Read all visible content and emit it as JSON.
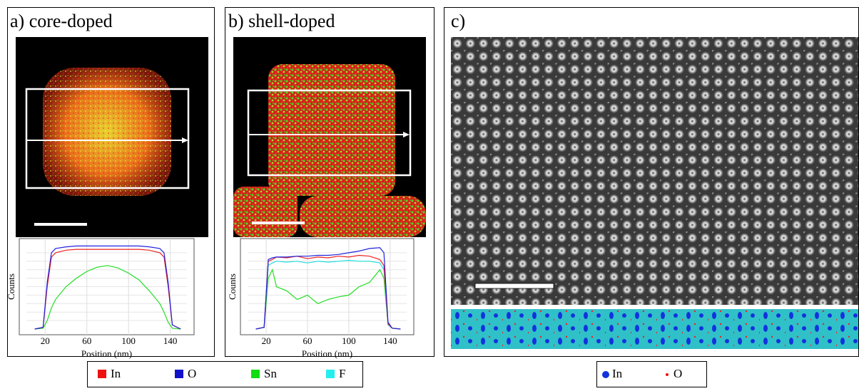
{
  "panels": [
    {
      "label": "a) core-doped",
      "plot": {
        "type": "line",
        "xlabel": "Position (nm)",
        "ylabel": "Counts",
        "xlim": [
          2,
          156
        ],
        "ylim": [
          0,
          1
        ],
        "xticks": [
          20,
          60,
          100,
          140
        ],
        "x": [
          10,
          18,
          22,
          26,
          30,
          40,
          50,
          60,
          70,
          80,
          90,
          100,
          110,
          120,
          130,
          134,
          138,
          142,
          150
        ],
        "series": [
          {
            "name": "Sn",
            "color": "#22dd22",
            "values": [
              0,
              0.01,
              0.1,
              0.25,
              0.35,
              0.5,
              0.6,
              0.68,
              0.73,
              0.75,
              0.72,
              0.66,
              0.58,
              0.45,
              0.3,
              0.2,
              0.08,
              0.01,
              0
            ]
          },
          {
            "name": "In",
            "color": "#ee2222",
            "values": [
              0,
              0.02,
              0.5,
              0.85,
              0.9,
              0.93,
              0.94,
              0.94,
              0.94,
              0.94,
              0.94,
              0.94,
              0.94,
              0.93,
              0.9,
              0.85,
              0.5,
              0.05,
              0
            ]
          },
          {
            "name": "O",
            "color": "#2222dd",
            "values": [
              0,
              0.02,
              0.55,
              0.9,
              0.95,
              0.97,
              0.98,
              0.98,
              0.98,
              0.98,
              0.98,
              0.98,
              0.98,
              0.97,
              0.95,
              0.9,
              0.55,
              0.05,
              0
            ]
          }
        ]
      }
    },
    {
      "label": "b) shell-doped",
      "plot": {
        "type": "line",
        "xlabel": "Position (nm)",
        "ylabel": "Counts",
        "xlim": [
          2,
          156
        ],
        "ylim": [
          0,
          1
        ],
        "xticks": [
          20,
          60,
          100,
          140
        ],
        "x": [
          10,
          18,
          22,
          26,
          30,
          40,
          50,
          60,
          70,
          80,
          90,
          100,
          110,
          120,
          130,
          134,
          138,
          142,
          150
        ],
        "series": [
          {
            "name": "Sn",
            "color": "#22dd22",
            "values": [
              0,
              0.02,
              0.6,
              0.7,
              0.5,
              0.45,
              0.35,
              0.4,
              0.3,
              0.35,
              0.38,
              0.4,
              0.5,
              0.55,
              0.7,
              0.6,
              0.05,
              0.01,
              0
            ]
          },
          {
            "name": "F",
            "color": "#22dddd",
            "values": [
              0,
              0.02,
              0.75,
              0.78,
              0.8,
              0.79,
              0.8,
              0.78,
              0.8,
              0.79,
              0.8,
              0.81,
              0.8,
              0.8,
              0.78,
              0.7,
              0.05,
              0.01,
              0
            ]
          },
          {
            "name": "In",
            "color": "#ee2222",
            "values": [
              0,
              0.02,
              0.8,
              0.82,
              0.85,
              0.84,
              0.86,
              0.83,
              0.85,
              0.84,
              0.86,
              0.85,
              0.87,
              0.86,
              0.82,
              0.75,
              0.06,
              0.01,
              0
            ]
          },
          {
            "name": "O",
            "color": "#2222dd",
            "values": [
              0,
              0.02,
              0.82,
              0.84,
              0.85,
              0.85,
              0.86,
              0.86,
              0.87,
              0.87,
              0.88,
              0.9,
              0.92,
              0.95,
              0.96,
              0.9,
              0.08,
              0.01,
              0
            ]
          }
        ]
      }
    },
    {
      "label": "c)"
    }
  ],
  "legend_left": [
    {
      "name": "In",
      "color": "#ee1111"
    },
    {
      "name": "O",
      "color": "#1111cc"
    },
    {
      "name": "Sn",
      "color": "#11dd11"
    },
    {
      "name": "F",
      "color": "#22eeee"
    }
  ],
  "legend_right": [
    {
      "name": "In",
      "color": "#1133dd"
    },
    {
      "name": "O",
      "color": "#ee1111"
    }
  ]
}
